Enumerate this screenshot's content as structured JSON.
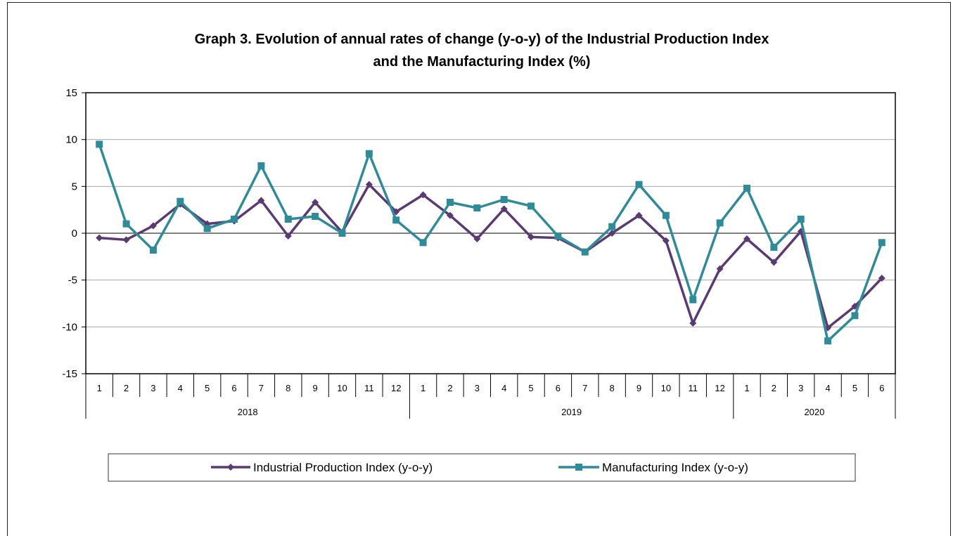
{
  "chart_data": {
    "type": "line",
    "title_line1": "Graph 3. Evolution of annual rates of change (y-o-y) of the Industrial Production Index",
    "title_line2": "and the Manufacturing Index (%)",
    "ylim": [
      -15,
      15
    ],
    "yticks": [
      "15",
      "10",
      "5",
      "0",
      "-5",
      "-10",
      "-15"
    ],
    "ytick_values": [
      15,
      10,
      5,
      0,
      -5,
      -10,
      -15
    ],
    "grid": true,
    "legend_position": "bottom",
    "categories": [
      "1",
      "2",
      "3",
      "4",
      "5",
      "6",
      "7",
      "8",
      "9",
      "10",
      "11",
      "12",
      "1",
      "2",
      "3",
      "4",
      "5",
      "6",
      "7",
      "8",
      "9",
      "10",
      "11",
      "12",
      "1",
      "2",
      "3",
      "4",
      "5",
      "6"
    ],
    "years": [
      {
        "label": "2018",
        "count": 12
      },
      {
        "label": "2019",
        "count": 12
      },
      {
        "label": "2020",
        "count": 6
      }
    ],
    "series": [
      {
        "name": "Industrial Production Index (y-o-y)",
        "color": "#5b3a73",
        "marker": "diamond",
        "values": [
          -0.5,
          -0.7,
          0.8,
          3.1,
          1.0,
          1.3,
          3.5,
          -0.3,
          3.3,
          0.1,
          5.2,
          2.3,
          4.1,
          1.9,
          -0.6,
          2.6,
          -0.4,
          -0.5,
          -2.0,
          0.0,
          1.9,
          -0.8,
          -9.6,
          -3.8,
          -0.6,
          -3.1,
          0.2,
          -10.1,
          -7.8,
          -4.8
        ]
      },
      {
        "name": "Manufacturing Index (y-o-y)",
        "color": "#2e8b99",
        "marker": "square",
        "values": [
          9.5,
          1.0,
          -1.8,
          3.4,
          0.5,
          1.5,
          7.2,
          1.5,
          1.8,
          0.0,
          8.5,
          1.4,
          -1.0,
          3.3,
          2.7,
          3.6,
          2.9,
          -0.3,
          -2.0,
          0.7,
          5.2,
          1.9,
          -7.1,
          1.1,
          4.8,
          -1.5,
          1.5,
          -11.5,
          -8.8,
          -1.0
        ]
      }
    ]
  }
}
